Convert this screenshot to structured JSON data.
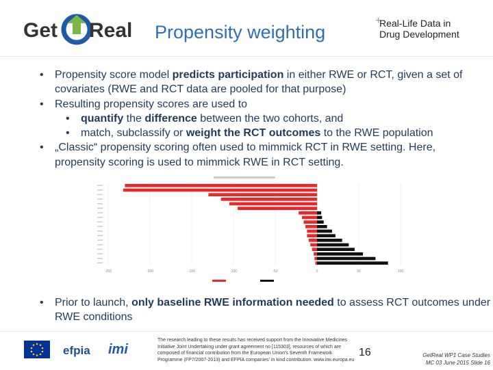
{
  "header": {
    "logo_left": {
      "text_a": "Get",
      "text_b": "Real"
    },
    "title": "Propensity weighting",
    "logo_right": {
      "line1": "Real-Life Data in",
      "line2": "Drug Development"
    }
  },
  "bullets": [
    {
      "parts": [
        {
          "text": "Propensity score model ",
          "bold": false
        },
        {
          "text": "predicts participation",
          "bold": true
        },
        {
          "text": " in either RWE or RCT, given a set of covariates (RWE and RCT data are pooled for that purpose)",
          "bold": false
        }
      ]
    },
    {
      "parts": [
        {
          "text": "Resulting propensity scores are used to",
          "bold": false
        }
      ],
      "sub": [
        {
          "parts": [
            {
              "text": "quantify",
              "bold": true
            },
            {
              "text": " the ",
              "bold": false
            },
            {
              "text": "difference",
              "bold": true
            },
            {
              "text": " between the two cohorts, and",
              "bold": false
            }
          ]
        },
        {
          "parts": [
            {
              "text": "match, subclassify or ",
              "bold": false
            },
            {
              "text": "weight the RCT outcomes",
              "bold": true
            },
            {
              "text": " to the RWE population",
              "bold": false
            }
          ]
        }
      ]
    },
    {
      "parts": [
        {
          "text": "„Classic“ propensity scoring often used to mimmick RCT in RWE setting. Here, propensity scoring is used to mimmick RWE in RCT setting.",
          "bold": false
        }
      ]
    }
  ],
  "chart_data": {
    "type": "bar",
    "orientation": "horizontal-back-to-back",
    "xlim": [
      -250,
      100
    ],
    "xticks": [
      -250,
      -200,
      -150,
      -100,
      -50,
      0,
      50,
      100
    ],
    "series": [
      {
        "color": "#e8282b",
        "values": [
          -230,
          -232,
          -130,
          -115,
          -105,
          -95,
          -22,
          -18,
          -16,
          -14,
          -12,
          -12,
          -10,
          -8,
          -6,
          -4,
          -3,
          -2
        ]
      },
      {
        "color": "#111111",
        "values": [
          0,
          0,
          0,
          0,
          0,
          0,
          5,
          6,
          8,
          12,
          18,
          22,
          30,
          38,
          45,
          55,
          70,
          85
        ]
      }
    ],
    "grid": true
  },
  "bottom_bullet": {
    "parts": [
      {
        "text": "Prior to launch, ",
        "bold": false
      },
      {
        "text": "only baseline RWE information needed",
        "bold": true
      },
      {
        "text": " to assess RCT outcomes under RWE conditions",
        "bold": false
      }
    ]
  },
  "footer": {
    "efpia": "efpia",
    "imi": "imi",
    "fine_print": "The research leading to these results has received support from the Innovative Medicines Initiative Joint Undertaking under grant agreement no [115303], resources of which are composed of financial contribution from the European Union's Seventh Framework Programme (FP7/2007-2013) and EFPIA companies' in kind contribution. www.imi.europa.eu",
    "page_number": "16",
    "right_line1": "GetReal WP1 Case Studies",
    "right_line2": "MC 03 June 2015   Slide 16"
  },
  "colors": {
    "title": "#2d6fb5",
    "text": "#1f3b5c",
    "rwe": "#e8282b",
    "rct": "#111111"
  }
}
